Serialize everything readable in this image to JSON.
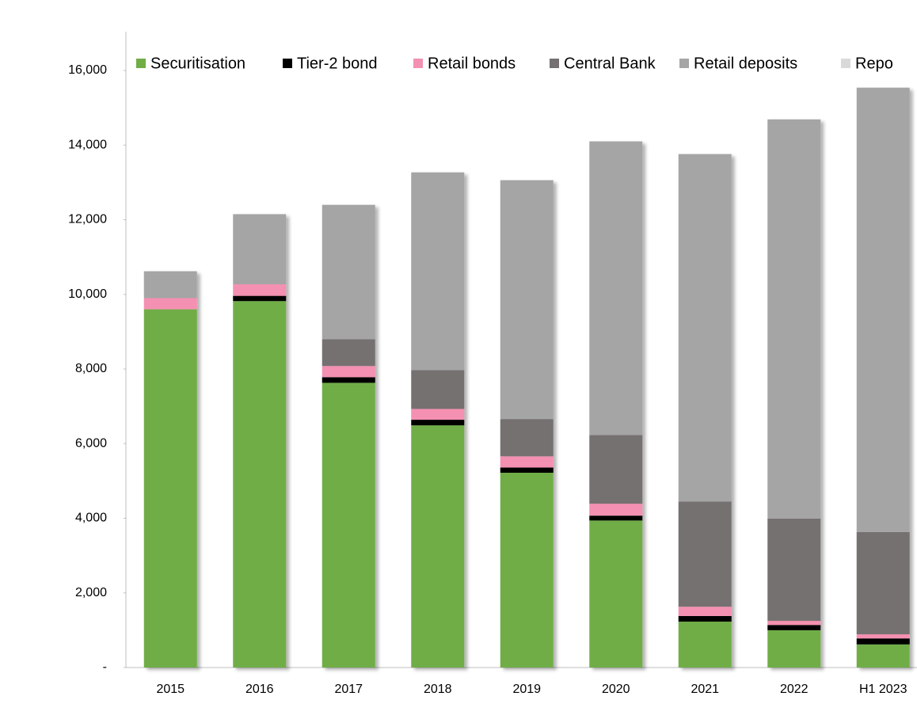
{
  "chart_data": {
    "type": "stacked_bar",
    "categories": [
      "2015",
      "2016",
      "2017",
      "2018",
      "2019",
      "2020",
      "2021",
      "2022",
      "H1 2023"
    ],
    "series": [
      {
        "name": "Securitisation",
        "color": "#70ad47",
        "values": [
          9600,
          9820,
          7630,
          6490,
          5220,
          3940,
          1230,
          1000,
          620
        ]
      },
      {
        "name": "Tier-2 bond",
        "color": "#000000",
        "values": [
          0,
          140,
          150,
          150,
          140,
          130,
          150,
          140,
          160
        ]
      },
      {
        "name": "Retail bonds",
        "color": "#f490b1",
        "values": [
          300,
          310,
          300,
          290,
          300,
          320,
          250,
          110,
          110
        ]
      },
      {
        "name": "Central Bank",
        "color": "#767171",
        "values": [
          0,
          0,
          720,
          1040,
          1000,
          1840,
          2820,
          2740,
          2740
        ]
      },
      {
        "name": "Retail deposits",
        "color": "#a5a5a5",
        "values": [
          720,
          1880,
          3600,
          5300,
          6400,
          7870,
          9310,
          10700,
          11910
        ]
      },
      {
        "name": "Repo",
        "color": "#d9d9d9",
        "values": [
          0,
          0,
          0,
          0,
          0,
          0,
          0,
          0,
          0
        ]
      }
    ],
    "ylim": [
      0,
      16000
    ],
    "yticks": [
      {
        "value": 0,
        "label": "-"
      },
      {
        "value": 2000,
        "label": "2,000"
      },
      {
        "value": 4000,
        "label": "4,000"
      },
      {
        "value": 6000,
        "label": "6,000"
      },
      {
        "value": 8000,
        "label": "8,000"
      },
      {
        "value": 10000,
        "label": "10,000"
      },
      {
        "value": 12000,
        "label": "12,000"
      },
      {
        "value": 14000,
        "label": "14,000"
      },
      {
        "value": 16000,
        "label": "16,000"
      }
    ],
    "legend": "top"
  }
}
